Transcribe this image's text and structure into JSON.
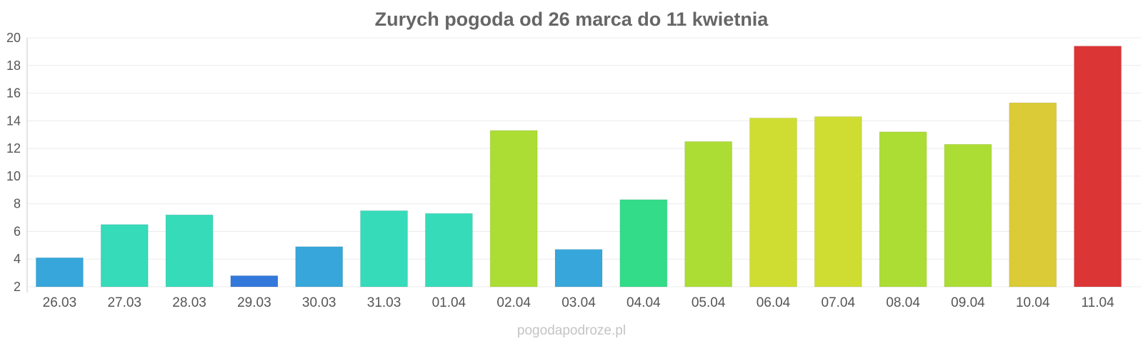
{
  "chart_data": {
    "type": "bar",
    "title": "Zurych pogoda od 26 marca do 11 kwietnia",
    "xlabel": "",
    "ylabel": "",
    "categories": [
      "26.03",
      "27.03",
      "28.03",
      "29.03",
      "30.03",
      "31.03",
      "01.04",
      "02.04",
      "03.04",
      "04.04",
      "05.04",
      "06.04",
      "07.04",
      "08.04",
      "09.04",
      "10.04",
      "11.04"
    ],
    "values": [
      4.1,
      6.5,
      7.2,
      2.8,
      4.9,
      7.5,
      7.3,
      13.3,
      4.7,
      8.3,
      12.5,
      14.2,
      14.3,
      13.2,
      12.3,
      15.3,
      19.4
    ],
    "colors": [
      "#37a7db",
      "#36dbba",
      "#36dbba",
      "#3378db",
      "#37a7db",
      "#36dbba",
      "#36dbba",
      "#acdd34",
      "#37a7db",
      "#33dc89",
      "#acdd34",
      "#cfdd33",
      "#cfdd33",
      "#acdd34",
      "#acdd34",
      "#dbcb36",
      "#db3536"
    ],
    "ylim": [
      2,
      20
    ],
    "yticks": [
      2,
      4,
      6,
      8,
      10,
      12,
      14,
      16,
      18,
      20
    ],
    "grid": true,
    "legend": "none"
  },
  "footer": "pogodapodroze.pl"
}
